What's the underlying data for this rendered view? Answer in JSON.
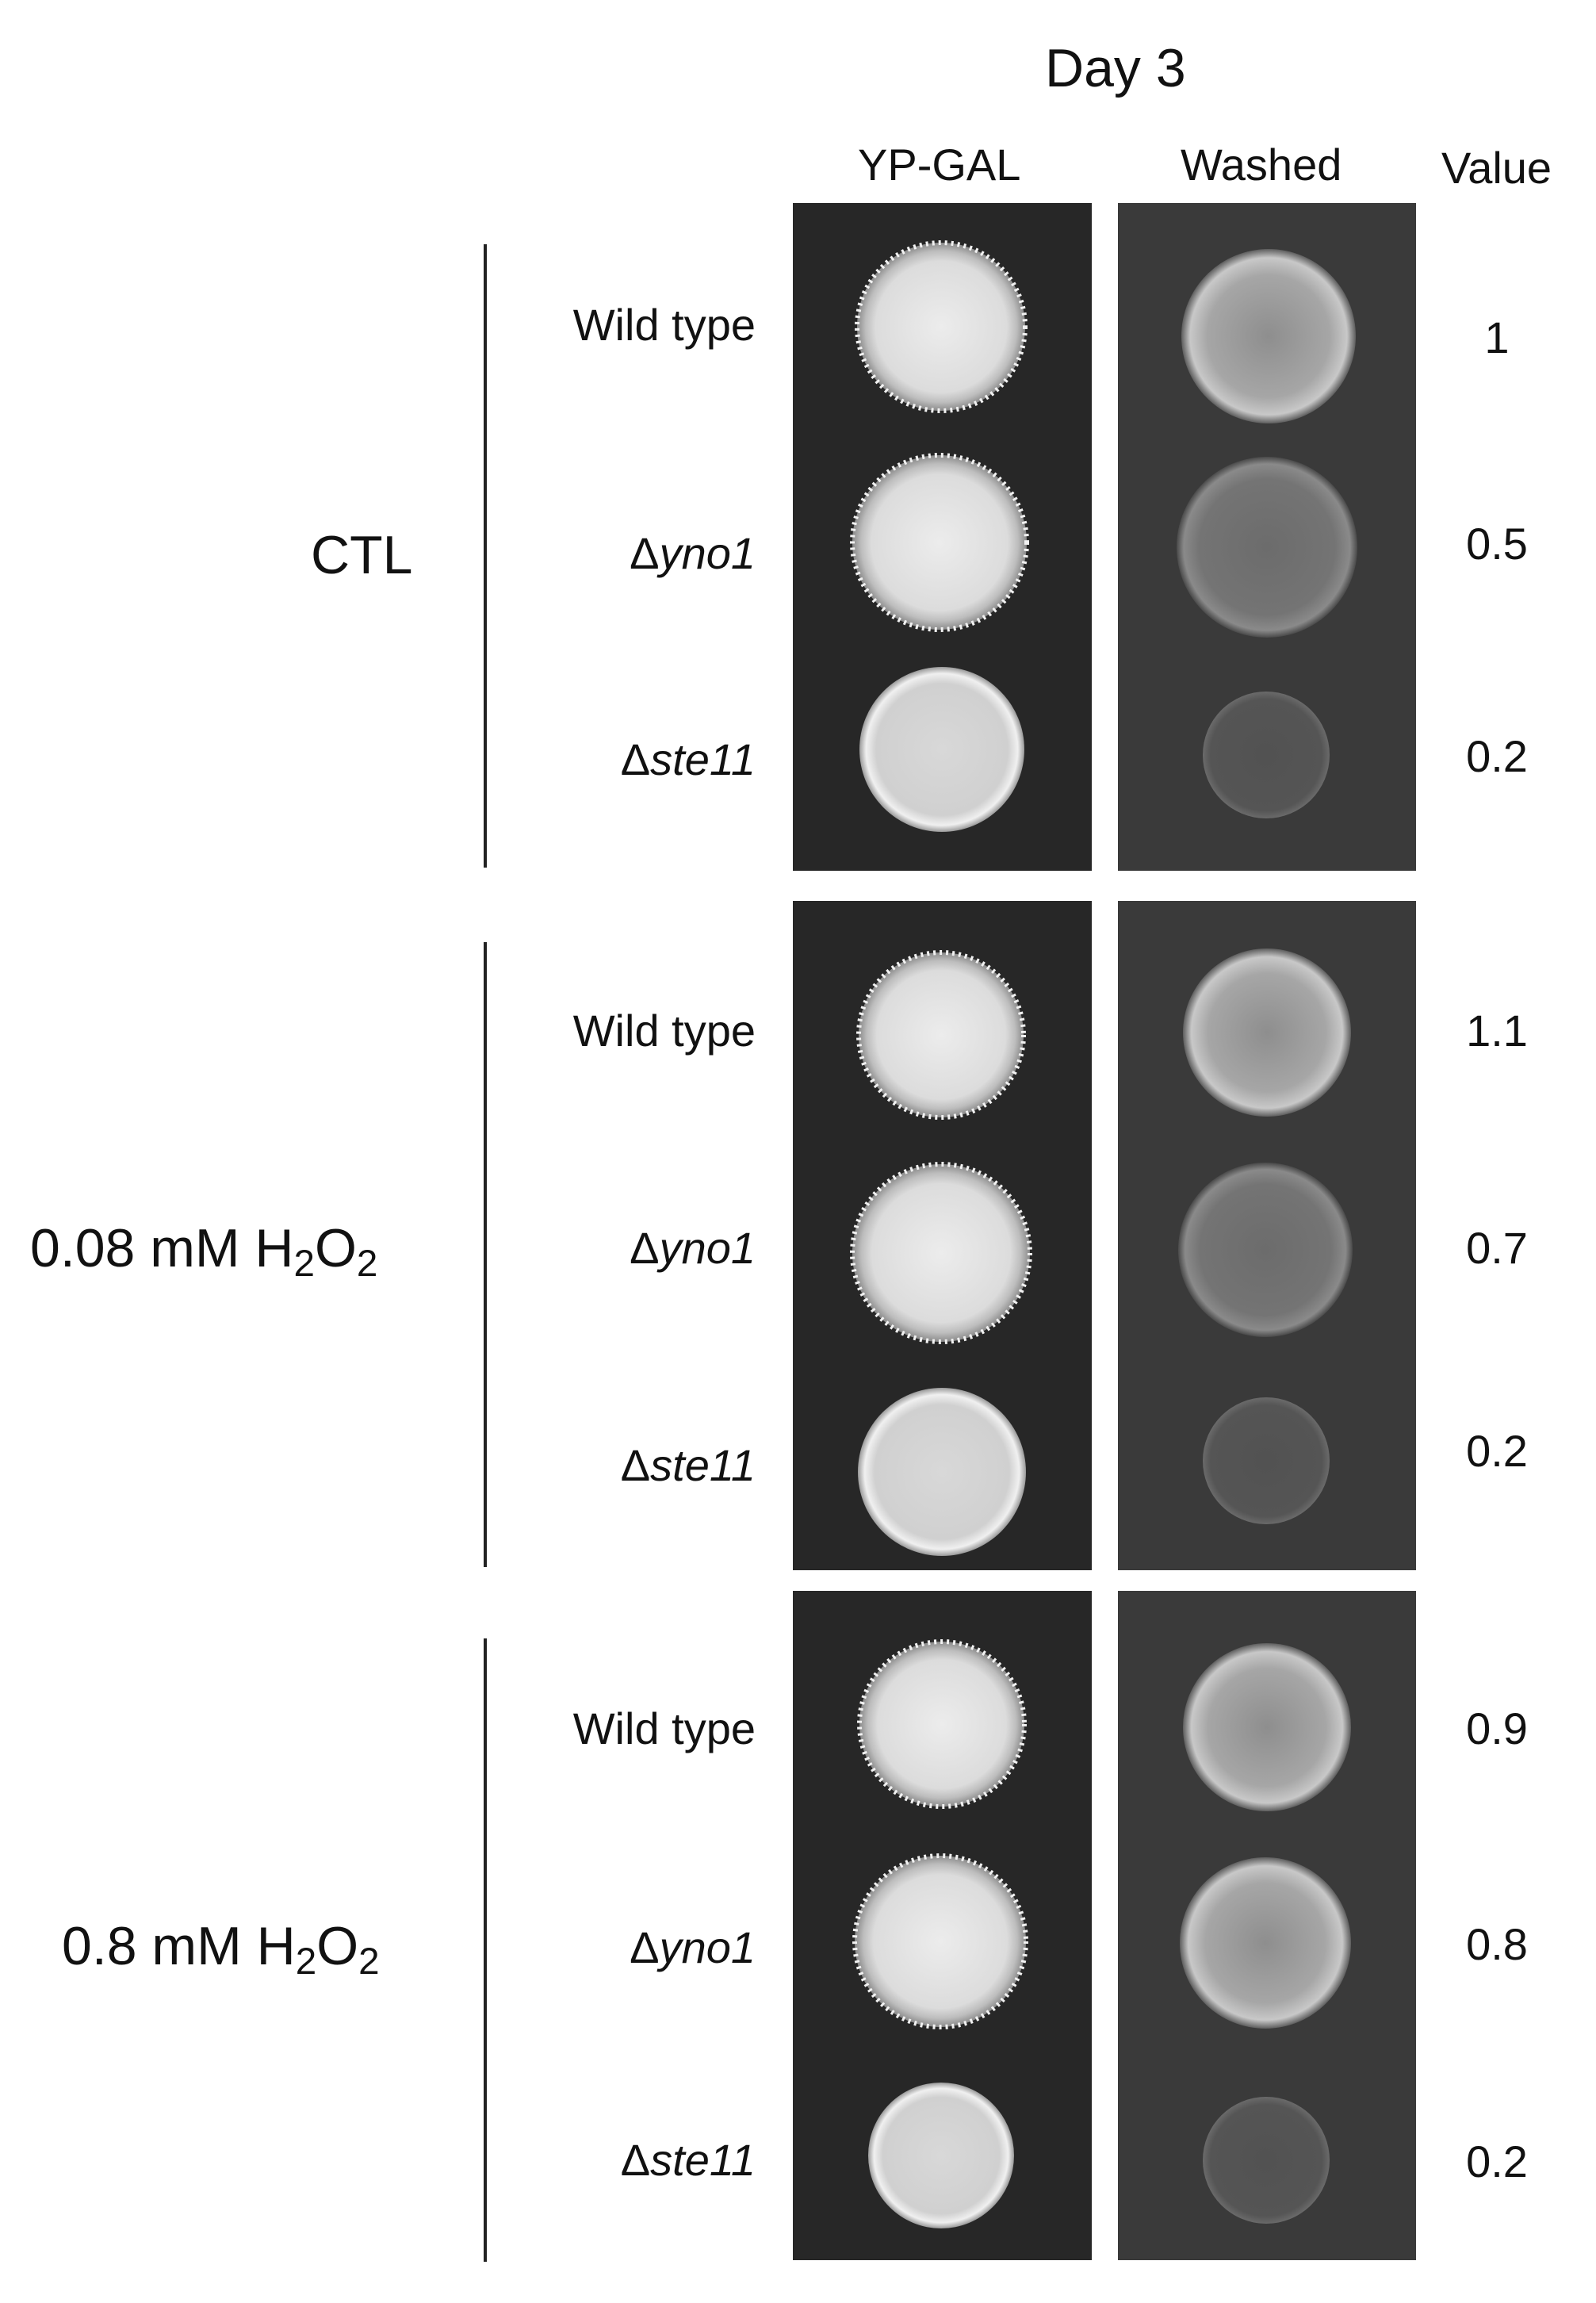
{
  "title": "Day 3",
  "columns": {
    "ypgal": "YP-GAL",
    "washed": "Washed",
    "value": "Value"
  },
  "colors": {
    "plate_ypgal": "#2a2a2a",
    "plate_washed": "#3a3a3a",
    "colony_light": "#e6e6e6",
    "colony_washed_light": "#bdbdbd",
    "colony_washed_dark": "#7a7a7a"
  },
  "groups": [
    {
      "condition": {
        "prefix": "CTL",
        "subscript_1": "",
        "mid": "",
        "subscript_2": ""
      },
      "rows": [
        {
          "strain_prefix": "",
          "strain": "Wild type",
          "value": "1"
        },
        {
          "strain_prefix": "Δ",
          "strain": "yno1",
          "value": "0.5"
        },
        {
          "strain_prefix": "Δ",
          "strain": "ste11",
          "value": "0.2"
        }
      ]
    },
    {
      "condition": {
        "prefix": "0.08 mM H",
        "subscript_1": "2",
        "mid": "O",
        "subscript_2": "2"
      },
      "rows": [
        {
          "strain_prefix": "",
          "strain": "Wild type",
          "value": "1.1"
        },
        {
          "strain_prefix": "Δ",
          "strain": "yno1",
          "value": "0.7"
        },
        {
          "strain_prefix": "Δ",
          "strain": "ste11",
          "value": "0.2"
        }
      ]
    },
    {
      "condition": {
        "prefix": "0.8 mM H",
        "subscript_1": "2",
        "mid": "O",
        "subscript_2": "2"
      },
      "rows": [
        {
          "strain_prefix": "",
          "strain": "Wild type",
          "value": "0.9"
        },
        {
          "strain_prefix": "Δ",
          "strain": "yno1",
          "value": "0.8"
        },
        {
          "strain_prefix": "Δ",
          "strain": "ste11",
          "value": "0.2"
        }
      ]
    }
  ]
}
